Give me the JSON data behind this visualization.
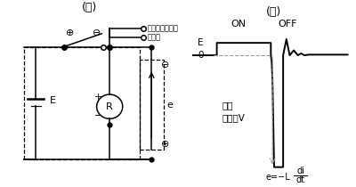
{
  "title_i": "(イ)",
  "title_ro": "(ロ)",
  "label_on": "ON",
  "label_off": "OFF",
  "label_E": "E",
  "label_0": "0",
  "label_voltage_1": "数百",
  "label_voltage_2": "～数千V",
  "label_e_formula": "e=−L",
  "label_di": "di",
  "label_dt": "dt",
  "label_e_box": "e",
  "label_plus_top": "⊕",
  "label_minus_top": "⊖",
  "label_minus_right": "⊖",
  "label_plus_bottom": "⊕",
  "label_plus_R": "+",
  "label_minus_R": "−",
  "label_R": "R",
  "label_E_battery": "E",
  "label_peak1": "ピークボルト・",
  "label_peak2": "メータ",
  "bg_color": "#ffffff",
  "line_color": "#000000",
  "gray_color": "#999999"
}
